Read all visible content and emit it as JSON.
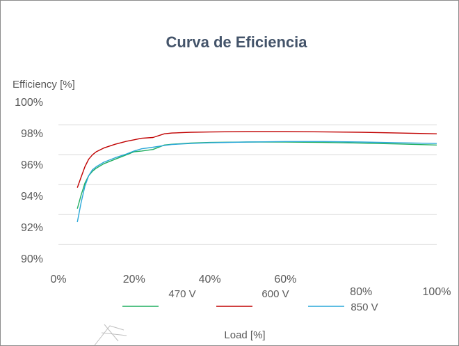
{
  "chart_data": {
    "type": "line",
    "title": "Curva de Eficiencia",
    "ylabel": "Efficiency [%]",
    "xlabel": "Load [%]",
    "x_ticks": [
      "0%",
      "20%",
      "40%",
      "60%",
      "80%",
      "100%"
    ],
    "y_ticks": [
      "90%",
      "92%",
      "94%",
      "96%",
      "98%",
      "100%"
    ],
    "xlim": [
      0,
      100
    ],
    "ylim": [
      89.2,
      100.5
    ],
    "grid": true,
    "legend_position": "bottom",
    "series": [
      {
        "name": "470 V",
        "color": "#1fae5f",
        "x": [
          5,
          6,
          7,
          8,
          9,
          10,
          12,
          15,
          18,
          20,
          22,
          25,
          28,
          30,
          35,
          40,
          50,
          60,
          70,
          80,
          90,
          100
        ],
        "y": [
          93.4,
          94.3,
          95.1,
          95.6,
          95.9,
          96.1,
          96.4,
          96.7,
          97.0,
          97.2,
          97.25,
          97.35,
          97.65,
          97.7,
          97.78,
          97.82,
          97.85,
          97.85,
          97.82,
          97.78,
          97.72,
          97.65
        ]
      },
      {
        "name": "600 V",
        "color": "#c00000",
        "x": [
          5,
          6,
          7,
          8,
          9,
          10,
          12,
          15,
          18,
          20,
          22,
          25,
          28,
          30,
          35,
          40,
          50,
          60,
          70,
          80,
          90,
          100
        ],
        "y": [
          94.8,
          95.5,
          96.2,
          96.7,
          97.0,
          97.2,
          97.45,
          97.7,
          97.9,
          98.0,
          98.1,
          98.15,
          98.4,
          98.45,
          98.5,
          98.52,
          98.55,
          98.55,
          98.53,
          98.5,
          98.45,
          98.4
        ]
      },
      {
        "name": "850 V",
        "color": "#29a7d8",
        "x": [
          5,
          6,
          7,
          8,
          9,
          10,
          12,
          15,
          18,
          20,
          22,
          25,
          28,
          30,
          35,
          40,
          50,
          60,
          70,
          80,
          90,
          100
        ],
        "y": [
          92.5,
          93.8,
          94.9,
          95.6,
          96.0,
          96.2,
          96.5,
          96.8,
          97.05,
          97.25,
          97.4,
          97.5,
          97.62,
          97.68,
          97.75,
          97.8,
          97.85,
          97.88,
          97.88,
          97.85,
          97.8,
          97.75
        ]
      }
    ]
  }
}
